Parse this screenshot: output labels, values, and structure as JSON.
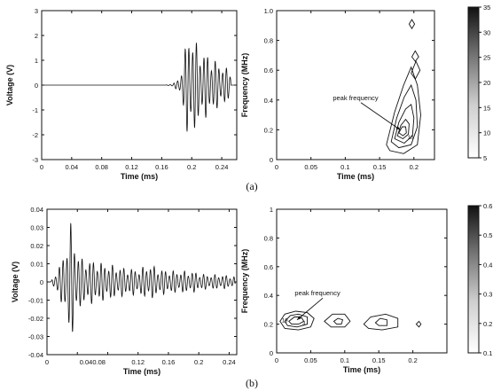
{
  "captions": [
    "(a)",
    "(b)"
  ],
  "colors": {
    "ink": "#111111",
    "background": "#ffffff"
  },
  "chart_data": [
    {
      "id": "a-waveform",
      "type": "line",
      "xlabel": "Time (ms)",
      "ylabel": "Voltage (V)",
      "xlim": [
        0,
        0.26
      ],
      "ylim": [
        -3,
        3
      ],
      "xticks": [
        0,
        0.04,
        0.08,
        0.12,
        0.16,
        0.2,
        0.24
      ],
      "xtick_labels": [
        "0",
        "0.04",
        "0.08",
        "0.12",
        "0.16",
        "0.2",
        "0.24"
      ],
      "yticks": [
        -3,
        -2,
        -1,
        0,
        1,
        2,
        3
      ],
      "ytick_labels": [
        "-3",
        "-2",
        "-1",
        "0",
        "1",
        "2",
        "3"
      ],
      "signal": {
        "flat_until": 0.165,
        "onset": 0.165,
        "end": 0.252,
        "frequency_mhz": 0.2,
        "envelope": [
          [
            0.165,
            0.0
          ],
          [
            0.175,
            0.06
          ],
          [
            0.183,
            0.25
          ],
          [
            0.19,
            1.2
          ],
          [
            0.195,
            2.3
          ],
          [
            0.2,
            2.1
          ],
          [
            0.205,
            1.8
          ],
          [
            0.212,
            1.4
          ],
          [
            0.22,
            1.3
          ],
          [
            0.232,
            1.0
          ],
          [
            0.242,
            0.8
          ],
          [
            0.252,
            0.55
          ]
        ]
      }
    },
    {
      "id": "a-spectrogram",
      "type": "contour",
      "xlabel": "Time (ms)",
      "ylabel": "Frequency (MHz)",
      "xlim": [
        0,
        0.23
      ],
      "ylim": [
        0,
        1.0
      ],
      "xticks": [
        0,
        0.05,
        0.1,
        0.15,
        0.2
      ],
      "xtick_labels": [
        "0",
        "0.05",
        "0.1",
        "0.15",
        "0.2"
      ],
      "yticks": [
        0,
        0.2,
        0.4,
        0.6,
        0.8,
        1.0
      ],
      "ytick_labels": [
        "0",
        "0.2",
        "0.4",
        "0.6",
        "0.8",
        "1.0"
      ],
      "annotation": {
        "text": "peak frequency",
        "text_at": [
          0.115,
          0.4
        ],
        "arrow_to": [
          0.18,
          0.2
        ]
      },
      "colorbar": {
        "min": 5,
        "max": 35,
        "ticks": [
          5,
          10,
          15,
          20,
          25,
          30,
          35
        ],
        "tick_labels": [
          "5",
          "10",
          "15",
          "20",
          "25",
          "30",
          "35"
        ],
        "dark_at": "max"
      },
      "contour_lines": [
        [
          [
            0.16,
            0.1
          ],
          [
            0.172,
            0.32
          ],
          [
            0.185,
            0.5
          ],
          [
            0.196,
            0.62
          ],
          [
            0.205,
            0.5
          ],
          [
            0.21,
            0.3
          ],
          [
            0.205,
            0.1
          ],
          [
            0.185,
            0.04
          ],
          [
            0.165,
            0.06
          ]
        ],
        [
          [
            0.167,
            0.12
          ],
          [
            0.175,
            0.28
          ],
          [
            0.186,
            0.42
          ],
          [
            0.196,
            0.5
          ],
          [
            0.203,
            0.4
          ],
          [
            0.205,
            0.22
          ],
          [
            0.196,
            0.1
          ],
          [
            0.178,
            0.08
          ]
        ],
        [
          [
            0.172,
            0.14
          ],
          [
            0.178,
            0.25
          ],
          [
            0.188,
            0.34
          ],
          [
            0.196,
            0.37
          ],
          [
            0.2,
            0.28
          ],
          [
            0.198,
            0.16
          ],
          [
            0.186,
            0.11
          ]
        ],
        [
          [
            0.176,
            0.16
          ],
          [
            0.181,
            0.23
          ],
          [
            0.188,
            0.27
          ],
          [
            0.193,
            0.24
          ],
          [
            0.192,
            0.17
          ],
          [
            0.184,
            0.14
          ]
        ],
        [
          [
            0.178,
            0.18
          ],
          [
            0.183,
            0.22
          ],
          [
            0.188,
            0.22
          ],
          [
            0.189,
            0.18
          ],
          [
            0.184,
            0.16
          ]
        ],
        [
          [
            0.196,
            0.58
          ],
          [
            0.203,
            0.66
          ],
          [
            0.209,
            0.6
          ],
          [
            0.202,
            0.54
          ]
        ],
        [
          [
            0.197,
            0.69
          ],
          [
            0.202,
            0.73
          ],
          [
            0.207,
            0.69
          ],
          [
            0.202,
            0.66
          ]
        ],
        [
          [
            0.193,
            0.91
          ],
          [
            0.197,
            0.94
          ],
          [
            0.201,
            0.91
          ],
          [
            0.197,
            0.88
          ]
        ]
      ],
      "contour_labels": [
        {
          "text": "10",
          "at": [
            0.195,
            0.15
          ]
        }
      ]
    },
    {
      "id": "b-waveform",
      "type": "line",
      "xlabel": "Time (ms)",
      "ylabel": "Voltage (V)",
      "xlim": [
        0,
        0.25
      ],
      "ylim": [
        -0.04,
        0.04
      ],
      "xticks": [
        0,
        0.04,
        0.08,
        0.12,
        0.16,
        0.2,
        0.24
      ],
      "xtick_labels": [
        "0",
        "0.04",
        "0.08",
        "0.12",
        "0.16",
        "0.2",
        "0.24"
      ],
      "xtick_label_override": "0.040.08",
      "yticks": [
        -0.04,
        -0.03,
        -0.02,
        -0.01,
        0,
        0.01,
        0.02,
        0.03,
        0.04
      ],
      "ytick_labels": [
        "-0.04",
        "-0.03",
        "-0.02",
        "-0.01",
        "0",
        "0.01",
        "0.02",
        "0.03",
        "0.04"
      ],
      "signal": {
        "flat_until": 0.005,
        "onset": 0.005,
        "end": 0.248,
        "frequency_mhz": 0.2,
        "envelope": [
          [
            0.005,
            0.0
          ],
          [
            0.012,
            0.006
          ],
          [
            0.02,
            0.012
          ],
          [
            0.028,
            0.028
          ],
          [
            0.032,
            0.034
          ],
          [
            0.036,
            0.024
          ],
          [
            0.045,
            0.013
          ],
          [
            0.06,
            0.012
          ],
          [
            0.08,
            0.01
          ],
          [
            0.1,
            0.008
          ],
          [
            0.12,
            0.007
          ],
          [
            0.135,
            0.01
          ],
          [
            0.15,
            0.007
          ],
          [
            0.17,
            0.006
          ],
          [
            0.19,
            0.006
          ],
          [
            0.21,
            0.004
          ],
          [
            0.23,
            0.004
          ],
          [
            0.248,
            0.003
          ]
        ]
      }
    },
    {
      "id": "b-spectrogram",
      "type": "contour",
      "xlabel": "Time (ms)",
      "ylabel": "Frequency (MHz)",
      "xlim": [
        0,
        0.25
      ],
      "ylim": [
        0,
        1
      ],
      "xticks": [
        0,
        0.05,
        0.1,
        0.15,
        0.2
      ],
      "xtick_labels": [
        "0",
        "0.05",
        "0.1",
        "0.15",
        "0.2"
      ],
      "yticks": [
        0,
        0.2,
        0.4,
        0.6,
        0.8,
        1
      ],
      "ytick_labels": [
        "0",
        "0.2",
        "0.4",
        "0.6",
        "0.8",
        "1"
      ],
      "annotation": {
        "text": "peak frequency",
        "text_at": [
          0.06,
          0.4
        ],
        "arrow_to": [
          0.03,
          0.23
        ]
      },
      "colorbar": {
        "min": 0.1,
        "max": 0.6,
        "ticks": [
          0.1,
          0.2,
          0.3,
          0.4,
          0.5,
          0.6
        ],
        "tick_labels": [
          "0.1",
          "0.2",
          "0.3",
          "0.4",
          "0.5",
          "0.6"
        ],
        "dark_at": "max"
      },
      "contour_lines": [
        [
          [
            0.005,
            0.22
          ],
          [
            0.012,
            0.27
          ],
          [
            0.028,
            0.29
          ],
          [
            0.045,
            0.28
          ],
          [
            0.055,
            0.24
          ],
          [
            0.05,
            0.18
          ],
          [
            0.032,
            0.16
          ],
          [
            0.012,
            0.17
          ]
        ],
        [
          [
            0.012,
            0.22
          ],
          [
            0.02,
            0.26
          ],
          [
            0.032,
            0.27
          ],
          [
            0.045,
            0.25
          ],
          [
            0.045,
            0.2
          ],
          [
            0.03,
            0.18
          ],
          [
            0.016,
            0.19
          ]
        ],
        [
          [
            0.018,
            0.22
          ],
          [
            0.026,
            0.25
          ],
          [
            0.036,
            0.25
          ],
          [
            0.04,
            0.22
          ],
          [
            0.032,
            0.2
          ],
          [
            0.022,
            0.2
          ]
        ],
        [
          [
            0.07,
            0.22
          ],
          [
            0.082,
            0.27
          ],
          [
            0.1,
            0.27
          ],
          [
            0.108,
            0.22
          ],
          [
            0.1,
            0.18
          ],
          [
            0.08,
            0.18
          ]
        ],
        [
          [
            0.084,
            0.22
          ],
          [
            0.09,
            0.24
          ],
          [
            0.097,
            0.23
          ],
          [
            0.095,
            0.2
          ],
          [
            0.088,
            0.2
          ]
        ],
        [
          [
            0.128,
            0.2
          ],
          [
            0.138,
            0.25
          ],
          [
            0.16,
            0.27
          ],
          [
            0.178,
            0.24
          ],
          [
            0.178,
            0.18
          ],
          [
            0.155,
            0.16
          ],
          [
            0.135,
            0.17
          ]
        ],
        [
          [
            0.145,
            0.21
          ],
          [
            0.152,
            0.24
          ],
          [
            0.162,
            0.23
          ],
          [
            0.162,
            0.19
          ],
          [
            0.15,
            0.19
          ]
        ],
        [
          [
            0.205,
            0.2
          ],
          [
            0.209,
            0.22
          ],
          [
            0.212,
            0.2
          ],
          [
            0.209,
            0.18
          ]
        ]
      ],
      "contour_labels": [
        {
          "text": "19",
          "at": [
            0.012,
            0.225
          ]
        },
        {
          "text": "3",
          "at": [
            0.04,
            0.208
          ]
        }
      ]
    }
  ]
}
